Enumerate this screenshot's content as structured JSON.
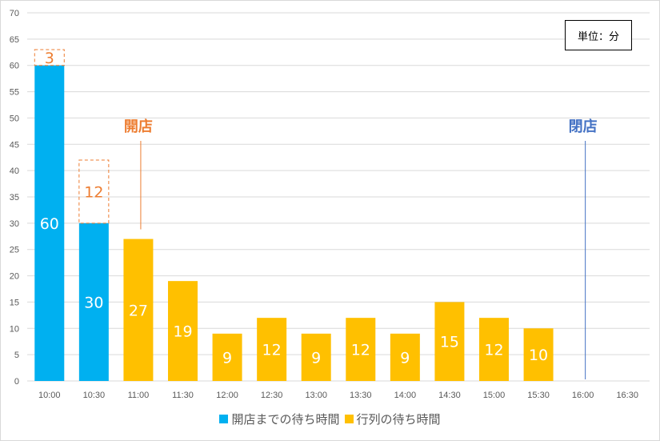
{
  "chart_data": {
    "type": "bar",
    "stacked": true,
    "categories": [
      "10:00",
      "10:30",
      "11:00",
      "11:30",
      "12:00",
      "12:30",
      "13:00",
      "13:30",
      "14:00",
      "14:30",
      "15:00",
      "15:30",
      "16:00",
      "16:30"
    ],
    "ylim": [
      0,
      70
    ],
    "yticks": [
      0,
      5,
      10,
      15,
      20,
      25,
      30,
      35,
      40,
      45,
      50,
      55,
      60,
      65,
      70
    ],
    "grid": true,
    "legend_position": "bottom",
    "series": [
      {
        "name": "開店までの待ち時間",
        "color": "#00b0f0",
        "values": [
          60,
          30,
          null,
          null,
          null,
          null,
          null,
          null,
          null,
          null,
          null,
          null,
          null,
          null
        ]
      },
      {
        "name": "行列の待ち時間",
        "color": "#ffc000",
        "values": [
          null,
          null,
          27,
          19,
          9,
          12,
          9,
          12,
          9,
          15,
          12,
          10,
          null,
          null
        ]
      }
    ],
    "extra_segments": {
      "color": "#ed7d31",
      "style": "dashed outline",
      "values": [
        3,
        12,
        null,
        null,
        null,
        null,
        null,
        null,
        null,
        null,
        null,
        null,
        null,
        null
      ]
    },
    "annotations": [
      {
        "text": "開店",
        "at_category": "11:00",
        "color": "#ed7d31"
      },
      {
        "text": "閉店",
        "at_category": "16:00",
        "color": "#4472c4"
      }
    ],
    "unit_label": "単位：分"
  }
}
